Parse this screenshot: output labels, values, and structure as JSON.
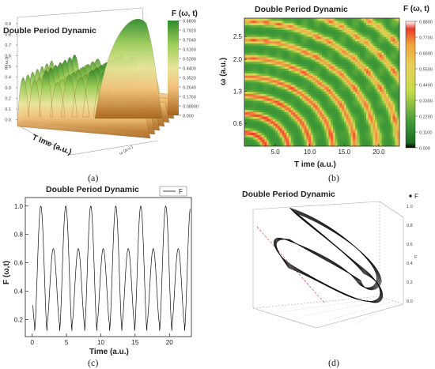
{
  "figure": {
    "captions": [
      "(a)",
      "(b)",
      "(c)",
      "(d)"
    ]
  },
  "chart_data": [
    {
      "id": "a",
      "type": "surface3d",
      "title": "Double Period Dynamic",
      "xlabel": "T ime (a.u.)",
      "ylabel": "ω (a.u.)",
      "zlabel": "F (ω,t)",
      "z_ticks": [
        "0.9",
        "0.8",
        "0.7",
        "0.6",
        "0.5",
        "0.4",
        "0.3",
        "0.2",
        "0.1",
        "0.0"
      ],
      "colorbar_title": "F (ω, t)",
      "colorbar_ticks": [
        "0.8800",
        "0.7920",
        "0.7040",
        "0.6160",
        "0.5280",
        "0.4400",
        "0.3520",
        "0.2640",
        "0.1760",
        "0.08800",
        "0.000"
      ],
      "colors": [
        "#a8631a",
        "#f2c27c",
        "#e9e59a",
        "#9ccd58",
        "#2e8a2b"
      ],
      "peaks": [
        {
          "x": 0.5,
          "z": 0.8
        },
        {
          "x": 1.5,
          "z": 0.75
        },
        {
          "x": 2.5,
          "z": 0.95
        },
        {
          "x": 3.5,
          "z": 0.7
        },
        {
          "x": 4.5,
          "z": 0.85
        },
        {
          "x": 5.5,
          "z": 0.8
        },
        {
          "x": 6.5,
          "z": 0.95
        },
        {
          "x": 7.5,
          "z": 0.9
        },
        {
          "x": 9.0,
          "z": 0.7
        }
      ]
    },
    {
      "id": "b",
      "type": "heatmap",
      "title": "Double Period Dynamic",
      "xlabel": "T ime (a.u.)",
      "ylabel": "ω (a.u.)",
      "x_ticks": [
        5.0,
        10.0,
        15.0,
        20.0
      ],
      "y_ticks": [
        0.6,
        1.3,
        2.0,
        2.5
      ],
      "xlim": [
        0.5,
        23
      ],
      "ylim": [
        0.1,
        2.9
      ],
      "colorbar_title": "F (ω, t)",
      "colorbar_ticks": [
        "0.8800",
        "0.7700",
        "0.6600",
        "0.5500",
        "0.4400",
        "0.3300",
        "0.2200",
        "0.1100",
        "0.000"
      ],
      "colors": [
        "#000000",
        "#3f9a3a",
        "#c8dc4a",
        "#e8d05a",
        "#f0a23a",
        "#e83a2a",
        "#ff3030"
      ]
    },
    {
      "id": "c",
      "type": "line",
      "title": "Double Period Dynamic",
      "xlabel": "Time (a.u.)",
      "ylabel": "F (ω,t)",
      "x_ticks": [
        0,
        5,
        10,
        15,
        20
      ],
      "y_ticks": [
        0.2,
        0.4,
        0.6,
        0.8,
        1.0
      ],
      "xlim": [
        -1.0,
        23.2
      ],
      "ylim": [
        0.08,
        1.06
      ],
      "legend": "F",
      "series": [
        {
          "name": "F",
          "period": 1.82,
          "peaks": [
            1.0,
            0.7
          ],
          "troughs": [
            0.12,
            0.17
          ]
        }
      ]
    },
    {
      "id": "d",
      "type": "line3d",
      "title": "Double Period Dynamic",
      "legend": "F",
      "zlabel": "F",
      "z_ticks": [
        "1.0",
        "0.8",
        "0.6",
        "0.4",
        "0.2",
        "0.0"
      ]
    }
  ]
}
